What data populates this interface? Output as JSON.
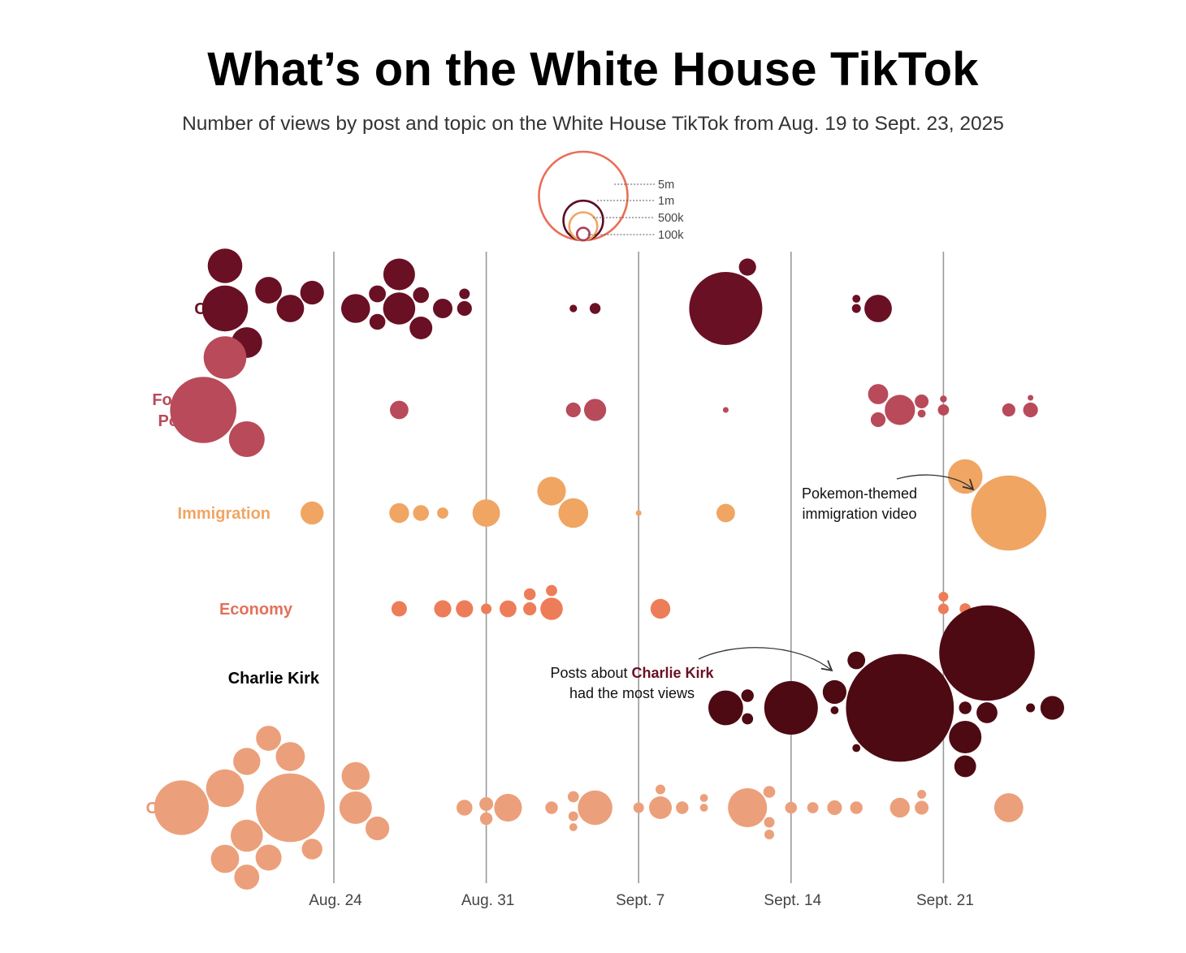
{
  "chart_data": {
    "type": "scatter",
    "title": "What’s on the White House TikTok",
    "subtitle": "Number of views by post and topic on the White House TikTok from Aug. 19 to Sept. 23, 2025",
    "x_ticks": [
      "Aug. 24",
      "Aug. 31",
      "Sept. 7",
      "Sept. 14",
      "Sept. 21"
    ],
    "x_tick_dates": [
      "2025-08-24",
      "2025-08-31",
      "2025-09-07",
      "2025-09-14",
      "2025-09-21"
    ],
    "x_range": [
      "2025-08-19",
      "2025-09-23"
    ],
    "size_legend": {
      "labels": [
        "5m",
        "1m",
        "500k",
        "100k"
      ],
      "values": [
        5000000,
        1000000,
        500000,
        100000
      ],
      "colors": [
        "#ea6e57",
        "#5a0e25",
        "#f0a563",
        "#a8415a"
      ]
    },
    "categories": [
      {
        "name": "Crime",
        "color": "#6a1024",
        "label_color": "#6a1024"
      },
      {
        "name": "Foreign Policy",
        "label_lines": [
          "Foreign",
          "Policy"
        ],
        "color": "#b84a5a",
        "label_color": "#b84a5a"
      },
      {
        "name": "Immigration",
        "color": "#f0a563",
        "label_color": "#f0a563"
      },
      {
        "name": "Economy",
        "color": "#ed7d59",
        "label_color": "#e2715a"
      },
      {
        "name": "Charlie Kirk",
        "color": "#4e0a13",
        "label_color": "#000000"
      },
      {
        "name": "Other",
        "color": "#eba07b",
        "label_color": "#e8987a"
      }
    ],
    "posts": [
      {
        "category": "Crime",
        "date": "2025-08-19",
        "views": 1340000
      },
      {
        "category": "Crime",
        "date": "2025-08-19",
        "views": 760000
      },
      {
        "category": "Crime",
        "date": "2025-08-20",
        "views": 600000
      },
      {
        "category": "Crime",
        "date": "2025-08-21",
        "views": 450000
      },
      {
        "category": "Crime",
        "date": "2025-08-22",
        "views": 480000
      },
      {
        "category": "Crime",
        "date": "2025-08-23",
        "views": 360000
      },
      {
        "category": "Crime",
        "date": "2025-08-25",
        "views": 530000
      },
      {
        "category": "Crime",
        "date": "2025-08-26",
        "views": 180000
      },
      {
        "category": "Crime",
        "date": "2025-08-26",
        "views": 160000
      },
      {
        "category": "Crime",
        "date": "2025-08-27",
        "views": 660000
      },
      {
        "category": "Crime",
        "date": "2025-08-27",
        "views": 640000
      },
      {
        "category": "Crime",
        "date": "2025-08-28",
        "views": 160000
      },
      {
        "category": "Crime",
        "date": "2025-08-28",
        "views": 330000
      },
      {
        "category": "Crime",
        "date": "2025-08-29",
        "views": 240000
      },
      {
        "category": "Crime",
        "date": "2025-08-30",
        "views": 70000
      },
      {
        "category": "Crime",
        "date": "2025-08-30",
        "views": 140000
      },
      {
        "category": "Crime",
        "date": "2025-09-04",
        "views": 35000
      },
      {
        "category": "Crime",
        "date": "2025-09-05",
        "views": 75000
      },
      {
        "category": "Crime",
        "date": "2025-09-11",
        "views": 3400000
      },
      {
        "category": "Crime",
        "date": "2025-09-12",
        "views": 190000
      },
      {
        "category": "Crime",
        "date": "2025-09-17",
        "views": 40000
      },
      {
        "category": "Crime",
        "date": "2025-09-17",
        "views": 50000
      },
      {
        "category": "Crime",
        "date": "2025-09-18",
        "views": 480000
      },
      {
        "category": "Foreign Policy",
        "date": "2025-08-18",
        "views": 2800000
      },
      {
        "category": "Foreign Policy",
        "date": "2025-08-19",
        "views": 1160000
      },
      {
        "category": "Foreign Policy",
        "date": "2025-08-20",
        "views": 810000
      },
      {
        "category": "Foreign Policy",
        "date": "2025-08-27",
        "views": 220000
      },
      {
        "category": "Foreign Policy",
        "date": "2025-09-04",
        "views": 140000
      },
      {
        "category": "Foreign Policy",
        "date": "2025-09-05",
        "views": 310000
      },
      {
        "category": "Foreign Policy",
        "date": "2025-09-11",
        "views": 20000
      },
      {
        "category": "Foreign Policy",
        "date": "2025-09-18",
        "views": 140000
      },
      {
        "category": "Foreign Policy",
        "date": "2025-09-18",
        "views": 260000
      },
      {
        "category": "Foreign Policy",
        "date": "2025-09-19",
        "views": 580000
      },
      {
        "category": "Foreign Policy",
        "date": "2025-09-20",
        "views": 120000
      },
      {
        "category": "Foreign Policy",
        "date": "2025-09-20",
        "views": 40000
      },
      {
        "category": "Foreign Policy",
        "date": "2025-09-21",
        "views": 80000
      },
      {
        "category": "Foreign Policy",
        "date": "2025-09-21",
        "views": 30000
      },
      {
        "category": "Foreign Policy",
        "date": "2025-09-24",
        "views": 110000
      },
      {
        "category": "Foreign Policy",
        "date": "2025-09-25",
        "views": 20000
      },
      {
        "category": "Foreign Policy",
        "date": "2025-09-25",
        "views": 140000
      },
      {
        "category": "Immigration",
        "date": "2025-08-23",
        "views": 340000
      },
      {
        "category": "Immigration",
        "date": "2025-08-27",
        "views": 250000
      },
      {
        "category": "Immigration",
        "date": "2025-08-28",
        "views": 160000
      },
      {
        "category": "Immigration",
        "date": "2025-08-29",
        "views": 80000
      },
      {
        "category": "Immigration",
        "date": "2025-08-31",
        "views": 480000
      },
      {
        "category": "Immigration",
        "date": "2025-09-03",
        "views": 520000
      },
      {
        "category": "Immigration",
        "date": "2025-09-04",
        "views": 560000
      },
      {
        "category": "Immigration",
        "date": "2025-09-07",
        "views": 20000
      },
      {
        "category": "Immigration",
        "date": "2025-09-11",
        "views": 220000
      },
      {
        "category": "Immigration",
        "date": "2025-09-22",
        "views": 760000
      },
      {
        "category": "Immigration",
        "date": "2025-09-24",
        "views": 3600000
      },
      {
        "category": "Economy",
        "date": "2025-08-27",
        "views": 150000
      },
      {
        "category": "Economy",
        "date": "2025-08-29",
        "views": 190000
      },
      {
        "category": "Economy",
        "date": "2025-08-30",
        "views": 190000
      },
      {
        "category": "Economy",
        "date": "2025-08-31",
        "views": 70000
      },
      {
        "category": "Economy",
        "date": "2025-09-01",
        "views": 180000
      },
      {
        "category": "Economy",
        "date": "2025-09-02",
        "views": 110000
      },
      {
        "category": "Economy",
        "date": "2025-09-02",
        "views": 90000
      },
      {
        "category": "Economy",
        "date": "2025-09-03",
        "views": 80000
      },
      {
        "category": "Economy",
        "date": "2025-09-03",
        "views": 320000
      },
      {
        "category": "Economy",
        "date": "2025-09-08",
        "views": 250000
      },
      {
        "category": "Economy",
        "date": "2025-09-21",
        "views": 60000
      },
      {
        "category": "Economy",
        "date": "2025-09-21",
        "views": 70000
      },
      {
        "category": "Economy",
        "date": "2025-09-22",
        "views": 80000
      },
      {
        "category": "Charlie Kirk",
        "date": "2025-09-11",
        "views": 770000
      },
      {
        "category": "Charlie Kirk",
        "date": "2025-09-12",
        "views": 100000
      },
      {
        "category": "Charlie Kirk",
        "date": "2025-09-12",
        "views": 80000
      },
      {
        "category": "Charlie Kirk",
        "date": "2025-09-14",
        "views": 1830000
      },
      {
        "category": "Charlie Kirk",
        "date": "2025-09-16",
        "views": 40000
      },
      {
        "category": "Charlie Kirk",
        "date": "2025-09-16",
        "views": 360000
      },
      {
        "category": "Charlie Kirk",
        "date": "2025-09-17",
        "views": 200000
      },
      {
        "category": "Charlie Kirk",
        "date": "2025-09-17",
        "views": 40000
      },
      {
        "category": "Charlie Kirk",
        "date": "2025-09-19",
        "views": 7400000
      },
      {
        "category": "Charlie Kirk",
        "date": "2025-09-22",
        "views": 670000
      },
      {
        "category": "Charlie Kirk",
        "date": "2025-09-22",
        "views": 100000
      },
      {
        "category": "Charlie Kirk",
        "date": "2025-09-22",
        "views": 300000
      },
      {
        "category": "Charlie Kirk",
        "date": "2025-09-23",
        "views": 280000
      },
      {
        "category": "Charlie Kirk",
        "date": "2025-09-23",
        "views": 5800000
      },
      {
        "category": "Charlie Kirk",
        "date": "2025-09-25",
        "views": 50000
      },
      {
        "category": "Charlie Kirk",
        "date": "2025-09-26",
        "views": 360000
      },
      {
        "category": "Other",
        "date": "2025-08-17",
        "views": 1900000
      },
      {
        "category": "Other",
        "date": "2025-08-19",
        "views": 510000
      },
      {
        "category": "Other",
        "date": "2025-08-19",
        "views": 910000
      },
      {
        "category": "Other",
        "date": "2025-08-20",
        "views": 400000
      },
      {
        "category": "Other",
        "date": "2025-08-20",
        "views": 470000
      },
      {
        "category": "Other",
        "date": "2025-08-20",
        "views": 660000
      },
      {
        "category": "Other",
        "date": "2025-08-21",
        "views": 430000
      },
      {
        "category": "Other",
        "date": "2025-08-21",
        "views": 400000
      },
      {
        "category": "Other",
        "date": "2025-08-22",
        "views": 3000000
      },
      {
        "category": "Other",
        "date": "2025-08-22",
        "views": 540000
      },
      {
        "category": "Other",
        "date": "2025-08-23",
        "views": 270000
      },
      {
        "category": "Other",
        "date": "2025-08-25",
        "views": 500000
      },
      {
        "category": "Other",
        "date": "2025-08-25",
        "views": 670000
      },
      {
        "category": "Other",
        "date": "2025-08-26",
        "views": 360000
      },
      {
        "category": "Other",
        "date": "2025-08-30",
        "views": 160000
      },
      {
        "category": "Other",
        "date": "2025-08-31",
        "views": 100000
      },
      {
        "category": "Other",
        "date": "2025-08-31",
        "views": 120000
      },
      {
        "category": "Other",
        "date": "2025-09-01",
        "views": 490000
      },
      {
        "category": "Other",
        "date": "2025-09-03",
        "views": 100000
      },
      {
        "category": "Other",
        "date": "2025-09-04",
        "views": 80000
      },
      {
        "category": "Other",
        "date": "2025-09-04",
        "views": 60000
      },
      {
        "category": "Other",
        "date": "2025-09-04",
        "views": 40000
      },
      {
        "category": "Other",
        "date": "2025-09-05",
        "views": 760000
      },
      {
        "category": "Other",
        "date": "2025-09-07",
        "views": 70000
      },
      {
        "category": "Other",
        "date": "2025-09-08",
        "views": 330000
      },
      {
        "category": "Other",
        "date": "2025-09-08",
        "views": 60000
      },
      {
        "category": "Other",
        "date": "2025-09-09",
        "views": 100000
      },
      {
        "category": "Other",
        "date": "2025-09-10",
        "views": 40000
      },
      {
        "category": "Other",
        "date": "2025-09-10",
        "views": 40000
      },
      {
        "category": "Other",
        "date": "2025-09-12",
        "views": 970000
      },
      {
        "category": "Other",
        "date": "2025-09-13",
        "views": 70000
      },
      {
        "category": "Other",
        "date": "2025-09-13",
        "views": 90000
      },
      {
        "category": "Other",
        "date": "2025-09-13",
        "views": 60000
      },
      {
        "category": "Other",
        "date": "2025-09-14",
        "views": 90000
      },
      {
        "category": "Other",
        "date": "2025-09-15",
        "views": 80000
      },
      {
        "category": "Other",
        "date": "2025-09-16",
        "views": 140000
      },
      {
        "category": "Other",
        "date": "2025-09-17",
        "views": 100000
      },
      {
        "category": "Other",
        "date": "2025-09-19",
        "views": 250000
      },
      {
        "category": "Other",
        "date": "2025-09-20",
        "views": 120000
      },
      {
        "category": "Other",
        "date": "2025-09-20",
        "views": 50000
      },
      {
        "category": "Other",
        "date": "2025-09-24",
        "views": 540000
      }
    ],
    "annotations": [
      {
        "lines": [
          [
            {
              "text": "Pokemon-themed"
            }
          ],
          [
            {
              "text": "immigration video"
            }
          ]
        ]
      },
      {
        "lines": [
          [
            {
              "text": "Posts about "
            },
            {
              "text": "Charlie Kirk",
              "bold": true,
              "color": "#6a1024"
            }
          ],
          [
            {
              "text": "had the most views"
            }
          ]
        ]
      }
    ]
  }
}
